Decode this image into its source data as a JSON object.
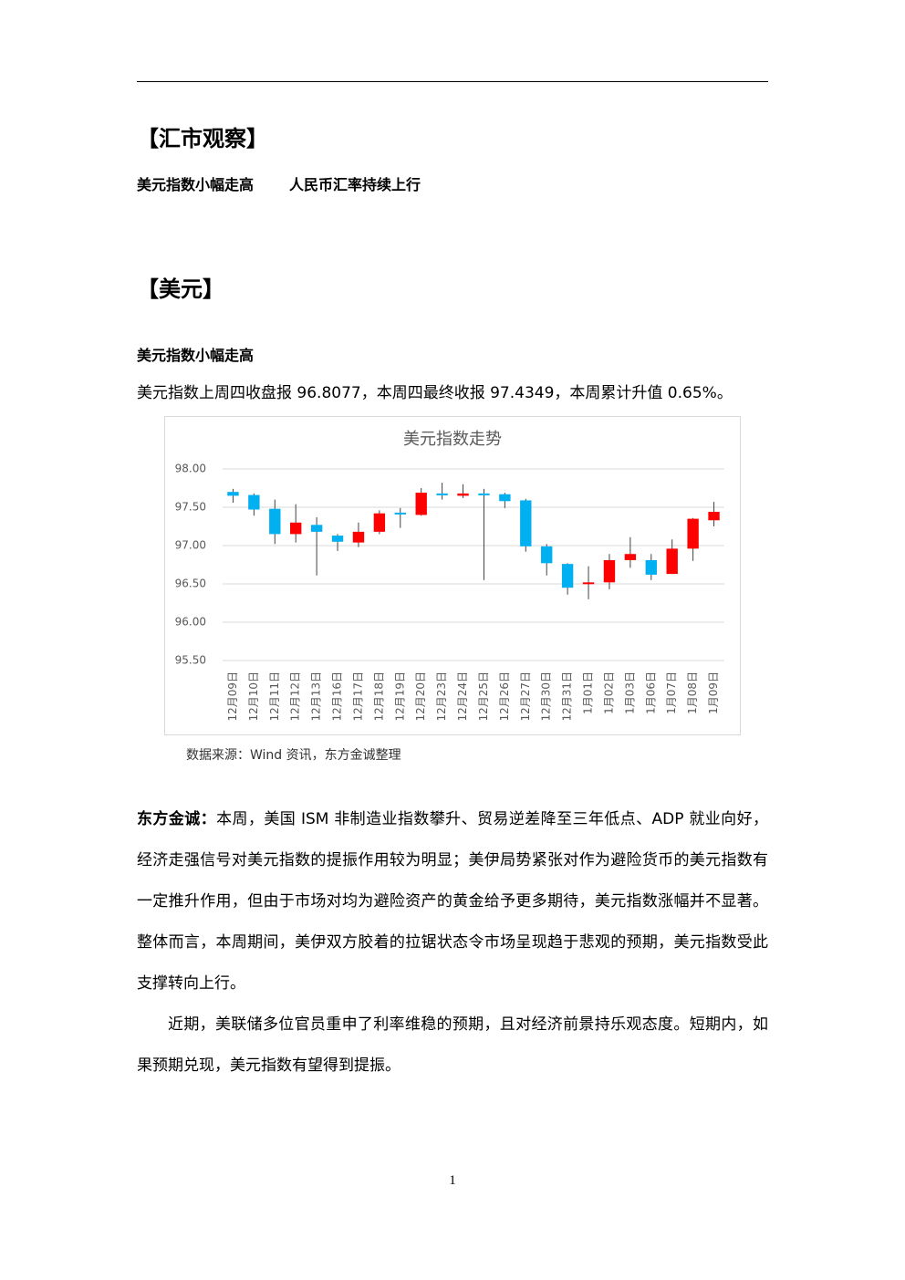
{
  "document": {
    "section_title": "【汇市观察】",
    "headline_left": "美元指数小幅走高",
    "headline_right": "人民币汇率持续上行",
    "sub_section_title": "【美元】",
    "sub_headline": "美元指数小幅走高",
    "summary": "美元指数上周四收盘报 96.8077，本周四最终收报 97.4349，本周累计升值 0.65%。",
    "chart_source": "数据来源：Wind 资讯，东方金诚整理",
    "paragraph_1_label": "东方金诚：",
    "paragraph_1": "本周，美国 ISM 非制造业指数攀升、贸易逆差降至三年低点、ADP 就业向好，经济走强信号对美元指数的提振作用较为明显；美伊局势紧张对作为避险货币的美元指数有一定推升作用，但由于市场对均为避险资产的黄金给予更多期待，美元指数涨幅并不显著。整体而言，本周期间，美伊双方胶着的拉锯状态令市场呈现趋于悲观的预期，美元指数受此支撑转向上行。",
    "paragraph_2": "近期，美联储多位官员重申了利率维稳的预期，且对经济前景持乐观态度。短期内，如果预期兑现，美元指数有望得到提振。",
    "page_number": "1"
  },
  "chart_data": {
    "type": "candlestick",
    "title": "美元指数走势",
    "categories": [
      "12月09日",
      "12月10日",
      "12月11日",
      "12月12日",
      "12月13日",
      "12月16日",
      "12月17日",
      "12月18日",
      "12月19日",
      "12月20日",
      "12月23日",
      "12月24日",
      "12月25日",
      "12月26日",
      "12月27日",
      "12月30日",
      "12月31日",
      "1月01日",
      "1月02日",
      "1月03日",
      "1月06日",
      "1月07日",
      "1月08日",
      "1月09日"
    ],
    "open": [
      97.7,
      97.66,
      97.48,
      97.15,
      97.27,
      97.13,
      97.04,
      97.18,
      97.43,
      97.4,
      97.68,
      97.65,
      97.68,
      97.67,
      97.59,
      96.99,
      96.76,
      96.5,
      96.52,
      96.81,
      96.81,
      96.63,
      96.96,
      97.33
    ],
    "high": [
      97.74,
      97.68,
      97.6,
      97.54,
      97.37,
      97.15,
      97.3,
      97.46,
      97.49,
      97.75,
      97.82,
      97.8,
      97.74,
      97.69,
      97.61,
      97.02,
      96.77,
      96.73,
      96.89,
      97.11,
      96.89,
      97.08,
      97.36,
      97.57
    ],
    "low": [
      97.56,
      97.39,
      97.02,
      97.04,
      96.61,
      96.93,
      96.98,
      97.15,
      97.23,
      97.39,
      97.6,
      97.62,
      96.55,
      97.49,
      96.92,
      96.61,
      96.36,
      96.3,
      96.43,
      96.71,
      96.55,
      96.63,
      96.8,
      97.25
    ],
    "close": [
      97.65,
      97.47,
      97.15,
      97.3,
      97.18,
      97.05,
      97.18,
      97.42,
      97.41,
      97.69,
      97.66,
      97.68,
      97.66,
      97.58,
      96.99,
      96.77,
      96.45,
      96.52,
      96.81,
      96.89,
      96.62,
      96.96,
      97.35,
      97.44
    ],
    "up_color": "#ff0000",
    "down_color": "#00b0f0",
    "ylim": [
      95.5,
      98.0
    ],
    "yticks": [
      {
        "value": 95.5,
        "label": "95.50"
      },
      {
        "value": 96,
        "label": "96.00"
      },
      {
        "value": 96.5,
        "label": "96.50"
      },
      {
        "value": 97,
        "label": "97.00"
      },
      {
        "value": 97.5,
        "label": "97.50"
      },
      {
        "value": 98,
        "label": "98.00"
      }
    ],
    "grid": true
  }
}
